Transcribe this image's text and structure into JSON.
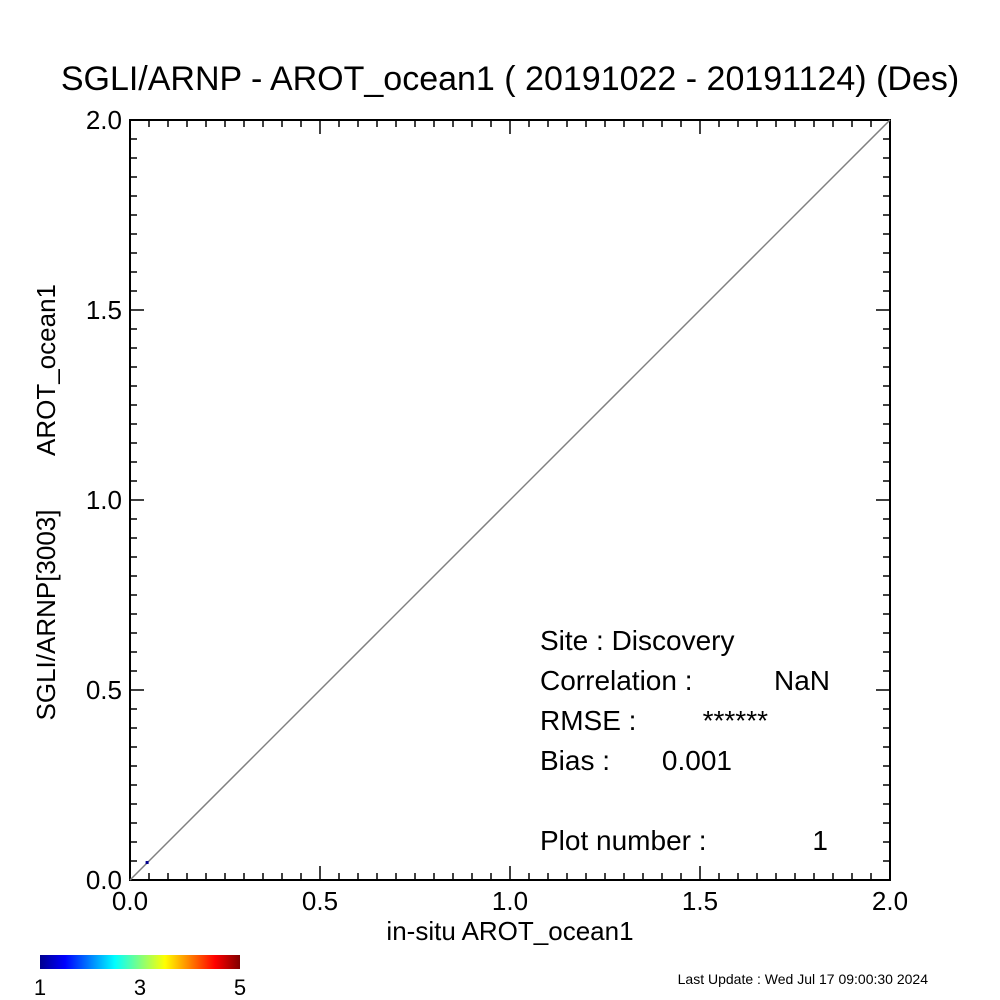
{
  "chart_data": {
    "type": "scatter",
    "title": "SGLI/ARNP - AROT_ocean1 ( 20191022 - 20191124) (Des)",
    "xlabel": "in-situ AROT_ocean1",
    "ylabel_lines": [
      "SGLI/ARNP[3003]",
      "AROT_ocean1"
    ],
    "xlim": [
      0.0,
      2.0
    ],
    "ylim": [
      0.0,
      2.0
    ],
    "x_ticks": [
      "0.0",
      "0.5",
      "1.0",
      "1.5",
      "2.0"
    ],
    "y_ticks": [
      "0.0",
      "0.5",
      "1.0",
      "1.5",
      "2.0"
    ],
    "grid": false,
    "reference_line": {
      "from": [
        0.0,
        0.0
      ],
      "to": [
        2.0,
        2.0
      ],
      "color": "#808080"
    },
    "points": [
      {
        "x": 0.045,
        "y": 0.046,
        "count": 1
      }
    ],
    "stats": [
      {
        "label": "Site : Discovery",
        "value": ""
      },
      {
        "label": "Correlation :",
        "value": "NaN"
      },
      {
        "label": "RMSE :",
        "value": "******"
      },
      {
        "label": "Bias :",
        "value": "0.001"
      },
      {
        "label": "Plot number :",
        "value": "1"
      }
    ],
    "colorbar": {
      "min_label": "1",
      "mid_label": "3",
      "max_label": "5",
      "colors": [
        "#00008f",
        "#0000ff",
        "#0080ff",
        "#00ffff",
        "#80ff80",
        "#ffff00",
        "#ff8000",
        "#ff0000",
        "#800000"
      ]
    }
  },
  "footer": {
    "last_update": "Last Update : Wed Jul 17 09:00:30 2024"
  }
}
